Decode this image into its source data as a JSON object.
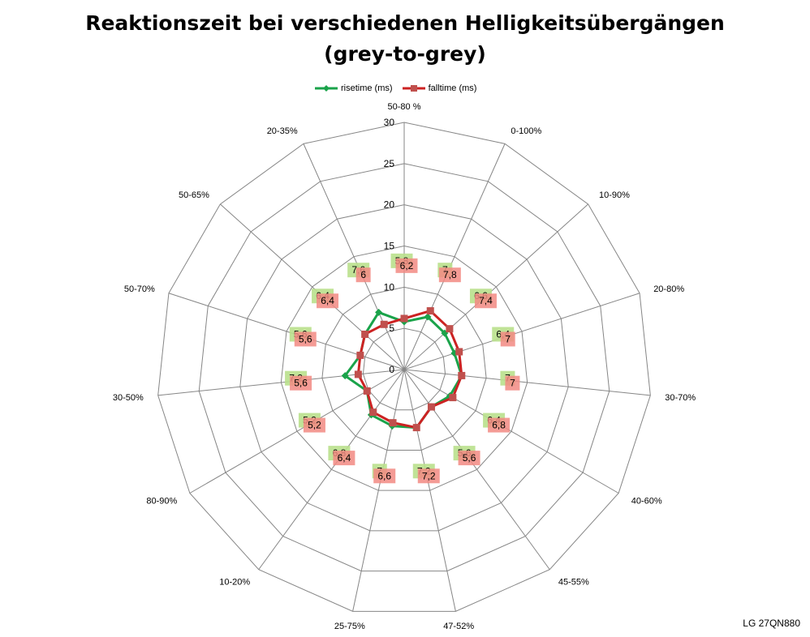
{
  "chart_data": {
    "type": "radar",
    "title_line1": "Reaktionszeit bei verschiedenen Helligkeitsübergängen",
    "title_line2": "(grey-to-grey)",
    "categories": [
      "50-80 %",
      "0-100%",
      "10-90%",
      "20-80%",
      "30-70%",
      "40-60%",
      "45-55%",
      "47-52%",
      "25-75%",
      "10-20%",
      "80-90%",
      "30-50%",
      "50-70%",
      "50-65%",
      "20-35%"
    ],
    "ylim": [
      0,
      30
    ],
    "ticks": [
      "0",
      "5",
      "10",
      "15",
      "20",
      "25",
      "30"
    ],
    "tick_values": [
      0,
      5,
      10,
      15,
      20,
      25,
      30
    ],
    "grid": true,
    "legend_position": "top",
    "series": [
      {
        "name": "risetime (ms)",
        "color": "#1aa34a",
        "label_bg": "#b9e08c",
        "values": [
          5.8,
          7,
          6.6,
          6.4,
          7,
          6.4,
          5.6,
          7.2,
          7,
          6.8,
          5.2,
          7.2,
          5.6,
          6.4,
          7.6
        ],
        "labels": [
          "5,8",
          "7",
          "6,6",
          "6,4",
          "7",
          "6,4",
          "5,6",
          "7,2",
          "7",
          "6,8",
          "5,2",
          "7,2",
          "5,6",
          "6,4",
          "7,6"
        ]
      },
      {
        "name": "falltime (ms)",
        "color": "#cc2222",
        "label_bg": "#f28a82",
        "values": [
          6.2,
          7.8,
          7.4,
          7,
          7,
          6.8,
          5.6,
          7.2,
          6.6,
          6.4,
          5.2,
          5.6,
          5.6,
          6.4,
          6
        ],
        "labels": [
          "6,2",
          "7,8",
          "7,4",
          "7",
          "7",
          "6,8",
          "5,6",
          "7,2",
          "6,6",
          "6,4",
          "5,2",
          "5,6",
          "5,6",
          "6,4",
          "6"
        ]
      }
    ]
  },
  "footer": "LG 27QN880"
}
